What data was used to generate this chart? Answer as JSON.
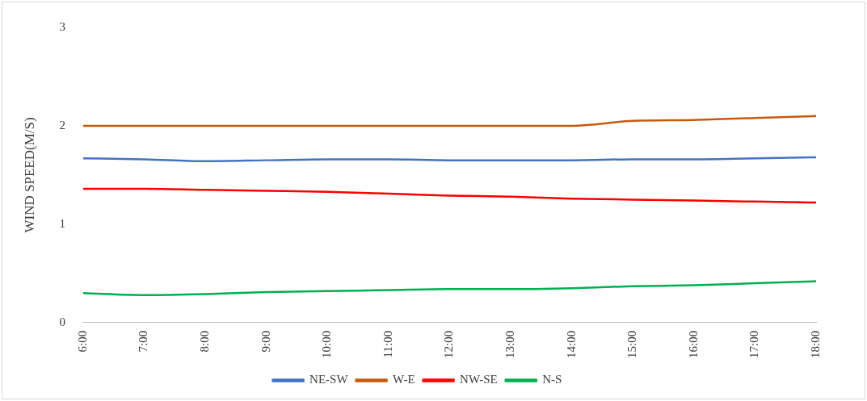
{
  "chart_data": {
    "type": "line",
    "ylabel": "WIND SPEED(M/S)",
    "categories": [
      "6:00",
      "7:00",
      "8:00",
      "9:00",
      "10:00",
      "11:00",
      "12:00",
      "13:00",
      "14:00",
      "15:00",
      "16:00",
      "17:00",
      "18:00"
    ],
    "series": [
      {
        "name": "NE-SW",
        "color": "#4472c4",
        "values": [
          1.67,
          1.66,
          1.64,
          1.65,
          1.66,
          1.66,
          1.65,
          1.65,
          1.65,
          1.66,
          1.66,
          1.67,
          1.68
        ]
      },
      {
        "name": "W-E",
        "color": "#c55a11",
        "values": [
          2.0,
          2.0,
          2.0,
          2.0,
          2.0,
          2.0,
          2.0,
          2.0,
          2.0,
          2.05,
          2.06,
          2.08,
          2.1
        ]
      },
      {
        "name": "NW-SE",
        "color": "#ff0000",
        "values": [
          1.36,
          1.36,
          1.35,
          1.34,
          1.33,
          1.31,
          1.29,
          1.28,
          1.26,
          1.25,
          1.24,
          1.23,
          1.22
        ]
      },
      {
        "name": "N-S",
        "color": "#00b050",
        "values": [
          0.3,
          0.28,
          0.29,
          0.31,
          0.32,
          0.33,
          0.34,
          0.34,
          0.35,
          0.37,
          0.38,
          0.4,
          0.42
        ]
      }
    ],
    "ylim": [
      0,
      3
    ],
    "yticks": [
      0,
      1,
      2,
      3
    ],
    "grid": false,
    "legend": "bottom",
    "marker": "none",
    "line_style": "solid"
  }
}
